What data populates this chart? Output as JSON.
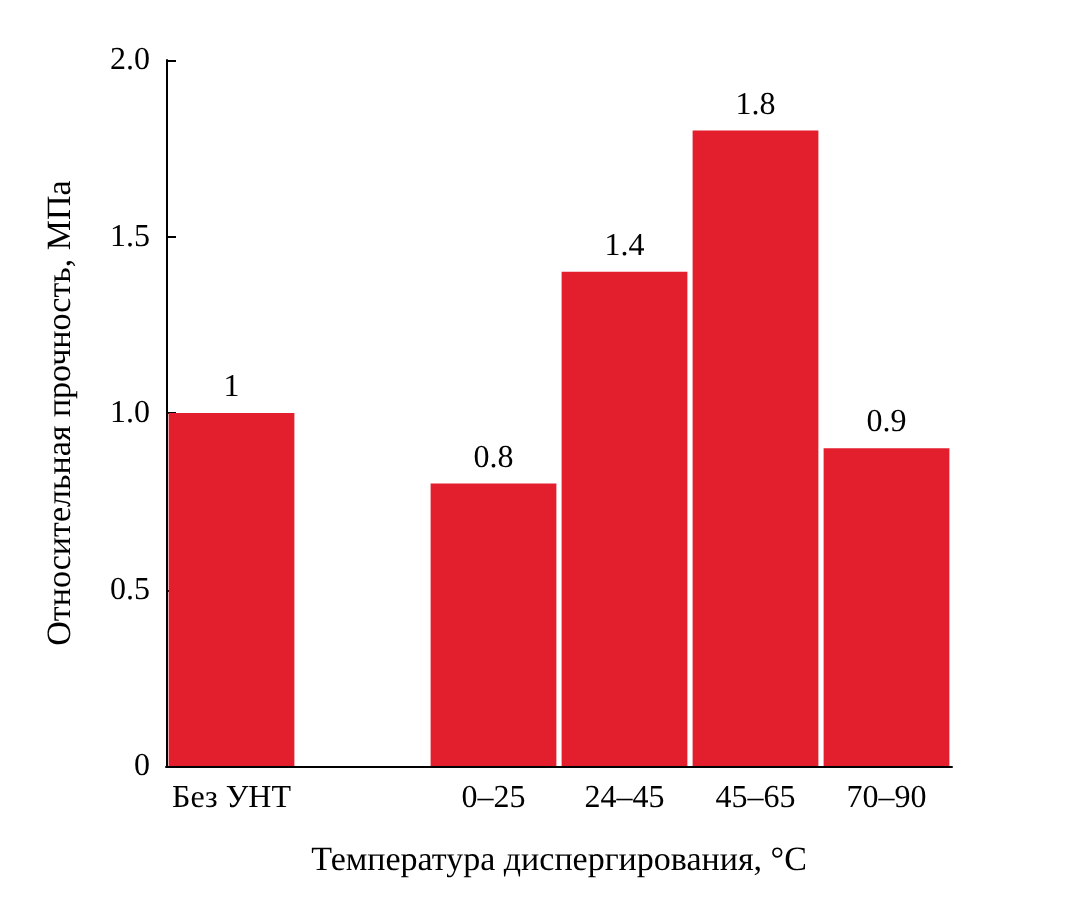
{
  "chart_data": {
    "type": "bar",
    "xlabel": "Температура диспергирования, °C",
    "ylabel": "Относительная прочность, МПа",
    "categories": [
      "Без УНТ",
      null,
      "0–25",
      "24–45",
      "45–65",
      "70–90"
    ],
    "values": [
      1,
      null,
      0.8,
      1.4,
      1.8,
      0.9
    ],
    "color": "#e31e2d",
    "ylim": [
      0,
      2
    ],
    "yticks": [
      0,
      {
        "value": 0.5,
        "label": "0.5"
      },
      {
        "value": 1,
        "label": "1.0"
      },
      {
        "value": 1.5,
        "label": "1.5"
      },
      {
        "value": 2,
        "label": "2.0"
      }
    ],
    "grid": false,
    "data_labels": true
  }
}
